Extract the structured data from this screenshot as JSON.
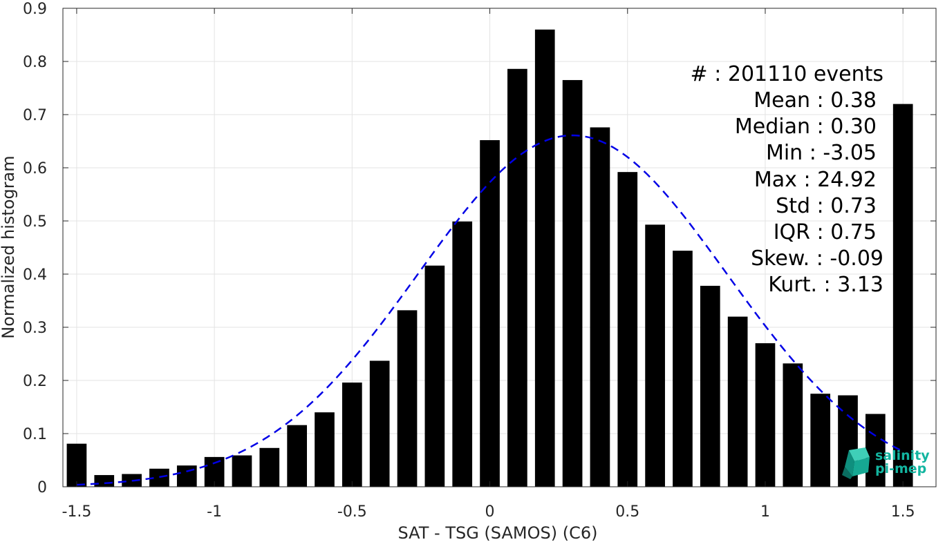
{
  "chart_data": {
    "type": "bar",
    "xlabel": "SAT - TSG (SAMOS) (C6)",
    "ylabel": "Normalized histogram",
    "xlim": [
      -1.55,
      1.62
    ],
    "ylim": [
      0,
      0.9
    ],
    "grid": true,
    "x_ticks": [
      -1.5,
      -1,
      -0.5,
      0,
      0.5,
      1,
      1.5
    ],
    "x_tick_labels": [
      "-1.5",
      "-1",
      "-0.5",
      "0",
      "0.5",
      "1",
      "1.5"
    ],
    "y_ticks": [
      0,
      0.1,
      0.2,
      0.3,
      0.4,
      0.5,
      0.6,
      0.7,
      0.8,
      0.9
    ],
    "y_tick_labels": [
      "0",
      "0.1",
      "0.2",
      "0.3",
      "0.4",
      "0.5",
      "0.6",
      "0.7",
      "0.8",
      "0.9"
    ],
    "bar_color": "#000000",
    "x": [
      -1.5,
      -1.4,
      -1.3,
      -1.2,
      -1.1,
      -1.0,
      -0.9,
      -0.8,
      -0.7,
      -0.6,
      -0.5,
      -0.4,
      -0.3,
      -0.2,
      -0.1,
      0.0,
      0.1,
      0.2,
      0.3,
      0.4,
      0.5,
      0.6,
      0.7,
      0.8,
      0.9,
      1.0,
      1.1,
      1.2,
      1.3,
      1.4,
      1.5
    ],
    "values": [
      0.081,
      0.022,
      0.024,
      0.034,
      0.04,
      0.056,
      0.059,
      0.073,
      0.116,
      0.14,
      0.196,
      0.237,
      0.332,
      0.416,
      0.499,
      0.652,
      0.786,
      0.86,
      0.765,
      0.676,
      0.592,
      0.493,
      0.444,
      0.378,
      0.32,
      0.27,
      0.232,
      0.175,
      0.172,
      0.137,
      0.72
    ],
    "fit_curve": {
      "style": "dashed",
      "color": "#0000e6",
      "distribution": "normal",
      "mean": 0.3,
      "std": 0.56,
      "peak": 0.661,
      "x_range": [
        -1.5,
        1.5
      ]
    },
    "annotations": [
      "#  : 201110 events",
      "Mean : 0.38",
      "Median : 0.30",
      "Min : -3.05",
      "Max : 24.92",
      "Std : 0.73",
      "IQR : 0.75",
      "Skew. : -0.09",
      "Kurt. : 3.13"
    ]
  },
  "logo": {
    "line1": "salinity",
    "line2": "pi-mep",
    "color": "#13b5a0"
  }
}
